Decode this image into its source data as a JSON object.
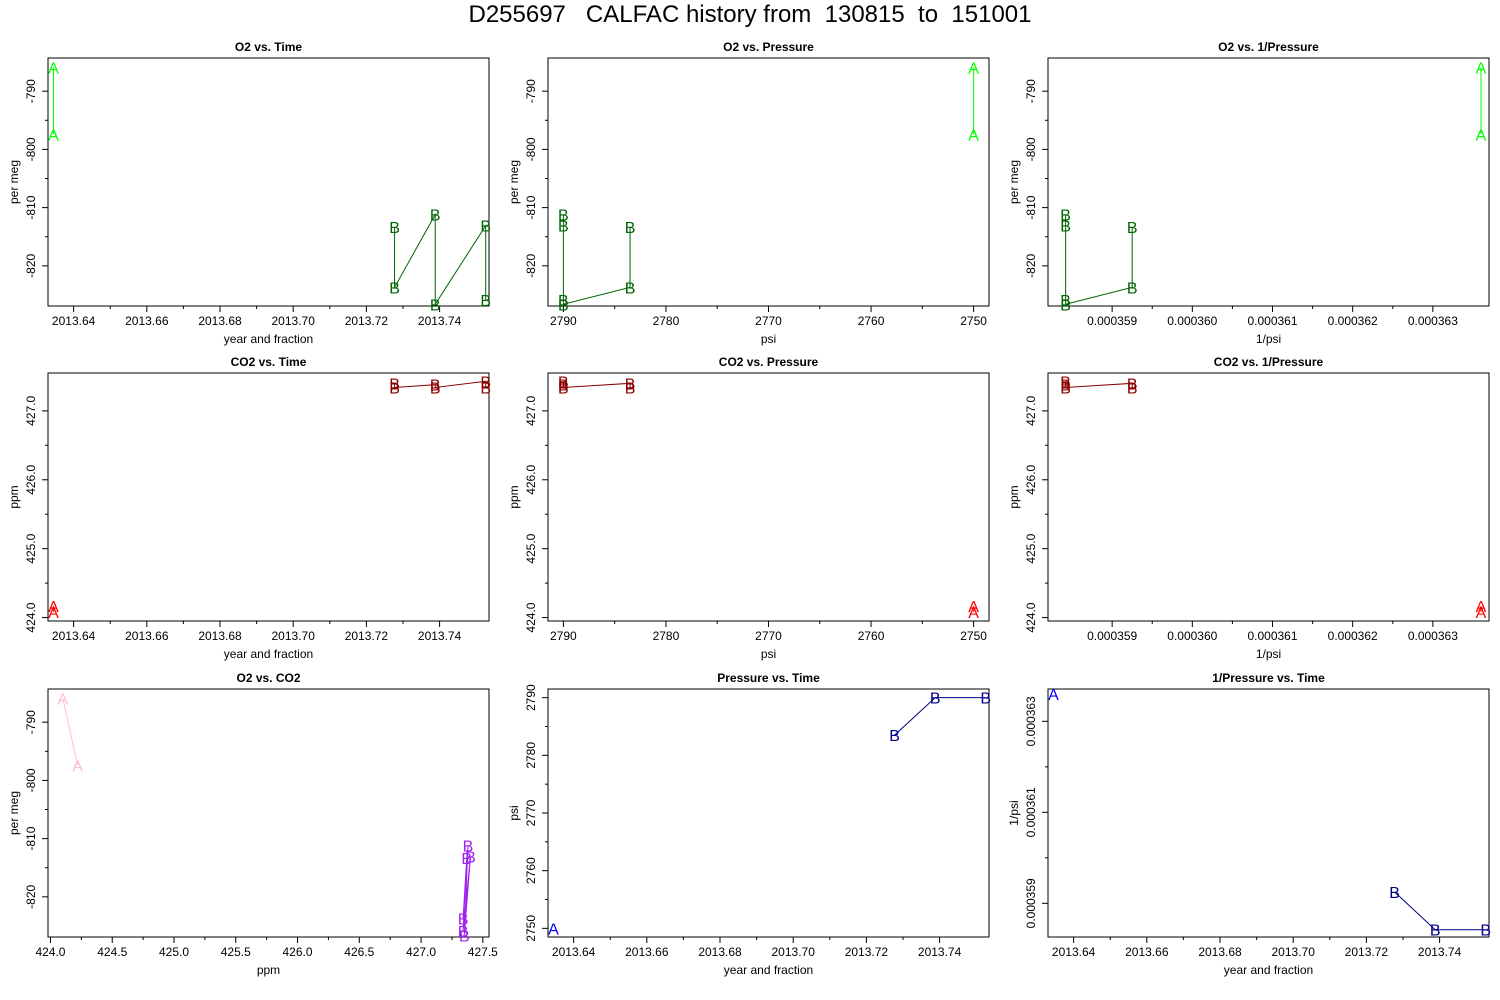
{
  "title": "D255697   CALFAC history from  130815  to  151001",
  "chart_data": [
    {
      "type": "line",
      "title": "O2 vs. Time",
      "xlabel": "year and fraction",
      "ylabel": "per meg",
      "xlim": [
        2013.633,
        2013.7535
      ],
      "ylim": [
        -826.9,
        -784.3
      ],
      "xticks": [
        "2013.64",
        "2013.66",
        "2013.68",
        "2013.70",
        "2013.72",
        "2013.74"
      ],
      "yticks": [
        "-790",
        "-800",
        "-810",
        "-820"
      ],
      "series": [
        {
          "name": "A",
          "color": "#00ff00",
          "points": [
            [
              2013.6345,
              -785.9
            ],
            [
              2013.6345,
              -797.4
            ]
          ]
        },
        {
          "name": "B",
          "color": "#006400",
          "points": [
            [
              2013.7277,
              -813.3
            ],
            [
              2013.7277,
              -823.7
            ],
            [
              2013.7388,
              -811.2
            ],
            [
              2013.7388,
              -826.6
            ],
            [
              2013.7526,
              -813.1
            ],
            [
              2013.7526,
              -825.9
            ]
          ]
        }
      ]
    },
    {
      "type": "line",
      "title": "O2 vs. Pressure",
      "xlabel": "psi",
      "ylabel": "per meg",
      "xlim": [
        2791.5,
        2748.5
      ],
      "ylim": [
        -826.9,
        -784.3
      ],
      "xticks": [
        "2790",
        "2780",
        "2770",
        "2760",
        "2750"
      ],
      "yticks": [
        "-790",
        "-800",
        "-810",
        "-820"
      ],
      "series": [
        {
          "name": "A",
          "color": "#00ff00",
          "points": [
            [
              2750,
              -785.9
            ],
            [
              2750,
              -797.4
            ]
          ]
        },
        {
          "name": "B",
          "color": "#006400",
          "points": [
            [
              2790,
              -811.2
            ],
            [
              2790,
              -813.1
            ],
            [
              2790,
              -825.9
            ],
            [
              2790,
              -826.6
            ],
            [
              2783.5,
              -823.7
            ],
            [
              2783.5,
              -813.3
            ]
          ]
        }
      ]
    },
    {
      "type": "line",
      "title": "O2 vs. 1/Pressure",
      "xlabel": "1/psi",
      "ylabel": "per meg",
      "xlim": [
        0.0003582,
        0.0003637
      ],
      "ylim": [
        -826.9,
        -784.3
      ],
      "xticks": [
        "0.000359",
        "0.000360",
        "0.000361",
        "0.000362",
        "0.000363"
      ],
      "yticks": [
        "-790",
        "-800",
        "-810",
        "-820"
      ],
      "series": [
        {
          "name": "A",
          "color": "#00ff00",
          "points": [
            [
              0.0003636,
              -785.9
            ],
            [
              0.0003636,
              -797.4
            ]
          ]
        },
        {
          "name": "B",
          "color": "#006400",
          "points": [
            [
              0.00035842,
              -811.2
            ],
            [
              0.00035842,
              -813.1
            ],
            [
              0.00035842,
              -825.9
            ],
            [
              0.00035842,
              -826.6
            ],
            [
              0.00035925,
              -823.7
            ],
            [
              0.00035925,
              -813.3
            ]
          ]
        }
      ]
    },
    {
      "type": "line",
      "title": "CO2 vs. Time",
      "xlabel": "year and fraction",
      "ylabel": "ppm",
      "xlim": [
        2013.633,
        2013.7535
      ],
      "ylim": [
        423.95,
        427.55
      ],
      "xticks": [
        "2013.64",
        "2013.66",
        "2013.68",
        "2013.70",
        "2013.72",
        "2013.74"
      ],
      "yticks": [
        "424.0",
        "425.0",
        "426.0",
        "427.0"
      ],
      "series": [
        {
          "name": "A",
          "color": "#ff0000",
          "points": [
            [
              2013.6345,
              424.08
            ],
            [
              2013.6345,
              424.17
            ]
          ]
        },
        {
          "name": "B",
          "color": "#8b0000",
          "points": [
            [
              2013.7277,
              427.4
            ],
            [
              2013.7277,
              427.34
            ],
            [
              2013.7388,
              427.38
            ],
            [
              2013.7388,
              427.34
            ],
            [
              2013.7526,
              427.43
            ],
            [
              2013.7526,
              427.34
            ]
          ]
        }
      ]
    },
    {
      "type": "line",
      "title": "CO2 vs. Pressure",
      "xlabel": "psi",
      "ylabel": "ppm",
      "xlim": [
        2791.5,
        2748.5
      ],
      "ylim": [
        423.95,
        427.55
      ],
      "xticks": [
        "2790",
        "2780",
        "2770",
        "2760",
        "2750"
      ],
      "yticks": [
        "424.0",
        "425.0",
        "426.0",
        "427.0"
      ],
      "series": [
        {
          "name": "A",
          "color": "#ff0000",
          "points": [
            [
              2750,
              424.08
            ],
            [
              2750,
              424.17
            ]
          ]
        },
        {
          "name": "B",
          "color": "#8b0000",
          "points": [
            [
              2790,
              427.43
            ],
            [
              2790,
              427.38
            ],
            [
              2790,
              427.34
            ],
            [
              2783.5,
              427.4
            ],
            [
              2783.5,
              427.34
            ]
          ]
        }
      ]
    },
    {
      "type": "line",
      "title": "CO2 vs. 1/Pressure",
      "xlabel": "1/psi",
      "ylabel": "ppm",
      "xlim": [
        0.0003582,
        0.0003637
      ],
      "ylim": [
        423.95,
        427.55
      ],
      "xticks": [
        "0.000359",
        "0.000360",
        "0.000361",
        "0.000362",
        "0.000363"
      ],
      "yticks": [
        "424.0",
        "425.0",
        "426.0",
        "427.0"
      ],
      "series": [
        {
          "name": "A",
          "color": "#ff0000",
          "points": [
            [
              0.0003636,
              424.08
            ],
            [
              0.0003636,
              424.17
            ]
          ]
        },
        {
          "name": "B",
          "color": "#8b0000",
          "points": [
            [
              0.00035842,
              427.43
            ],
            [
              0.00035842,
              427.38
            ],
            [
              0.00035842,
              427.34
            ],
            [
              0.00035925,
              427.4
            ],
            [
              0.00035925,
              427.34
            ]
          ]
        }
      ]
    },
    {
      "type": "line",
      "title": "O2 vs. CO2",
      "xlabel": "ppm",
      "ylabel": "per meg",
      "xlim": [
        423.98,
        427.55
      ],
      "ylim": [
        -826.9,
        -784.3
      ],
      "xticks": [
        "424.0",
        "424.5",
        "425.0",
        "425.5",
        "426.0",
        "426.5",
        "427.0",
        "427.5"
      ],
      "yticks": [
        "-790",
        "-800",
        "-810",
        "-820"
      ],
      "series": [
        {
          "name": "A",
          "color": "#ffc0cb",
          "points": [
            [
              424.1,
              -785.9
            ],
            [
              424.22,
              -797.4
            ]
          ]
        },
        {
          "name": "B",
          "color": "#a020f0",
          "points": [
            [
              427.38,
              -811.2
            ],
            [
              427.35,
              -826.6
            ],
            [
              427.4,
              -813.1
            ],
            [
              427.34,
              -825.9
            ],
            [
              427.37,
              -813.3
            ],
            [
              427.34,
              -823.7
            ]
          ]
        }
      ]
    },
    {
      "type": "line",
      "title": "Pressure vs. Time",
      "xlabel": "year and fraction",
      "ylabel": "psi",
      "xlim": [
        2013.633,
        2013.7535
      ],
      "ylim": [
        2748.5,
        2791.5
      ],
      "xticks": [
        "2013.64",
        "2013.66",
        "2013.68",
        "2013.70",
        "2013.72",
        "2013.74"
      ],
      "yticks": [
        "2750",
        "2760",
        "2770",
        "2780",
        "2790"
      ],
      "series": [
        {
          "name": "A",
          "color": "#0000ff",
          "points": [
            [
              2013.6345,
              2750
            ]
          ]
        },
        {
          "name": "B",
          "color": "#00008b",
          "points": [
            [
              2013.7277,
              2783.5
            ],
            [
              2013.7388,
              2790
            ],
            [
              2013.7526,
              2790
            ]
          ]
        }
      ]
    },
    {
      "type": "line",
      "title": "1/Pressure vs. Time",
      "xlabel": "year and fraction",
      "ylabel": "1/psi",
      "xlim": [
        2013.633,
        2013.7535
      ],
      "ylim": [
        0.00035826,
        0.00036371
      ],
      "xticks": [
        "2013.64",
        "2013.66",
        "2013.68",
        "2013.70",
        "2013.72",
        "2013.74"
      ],
      "yticks": [
        "0.000359",
        "0.000361",
        "0.000363"
      ],
      "series": [
        {
          "name": "A",
          "color": "#0000ff",
          "points": [
            [
              2013.6345,
              0.0003636
            ]
          ]
        },
        {
          "name": "B",
          "color": "#00008b",
          "points": [
            [
              2013.7277,
              0.00035925
            ],
            [
              2013.7388,
              0.00035842
            ],
            [
              2013.7526,
              0.00035842
            ]
          ]
        }
      ]
    }
  ]
}
